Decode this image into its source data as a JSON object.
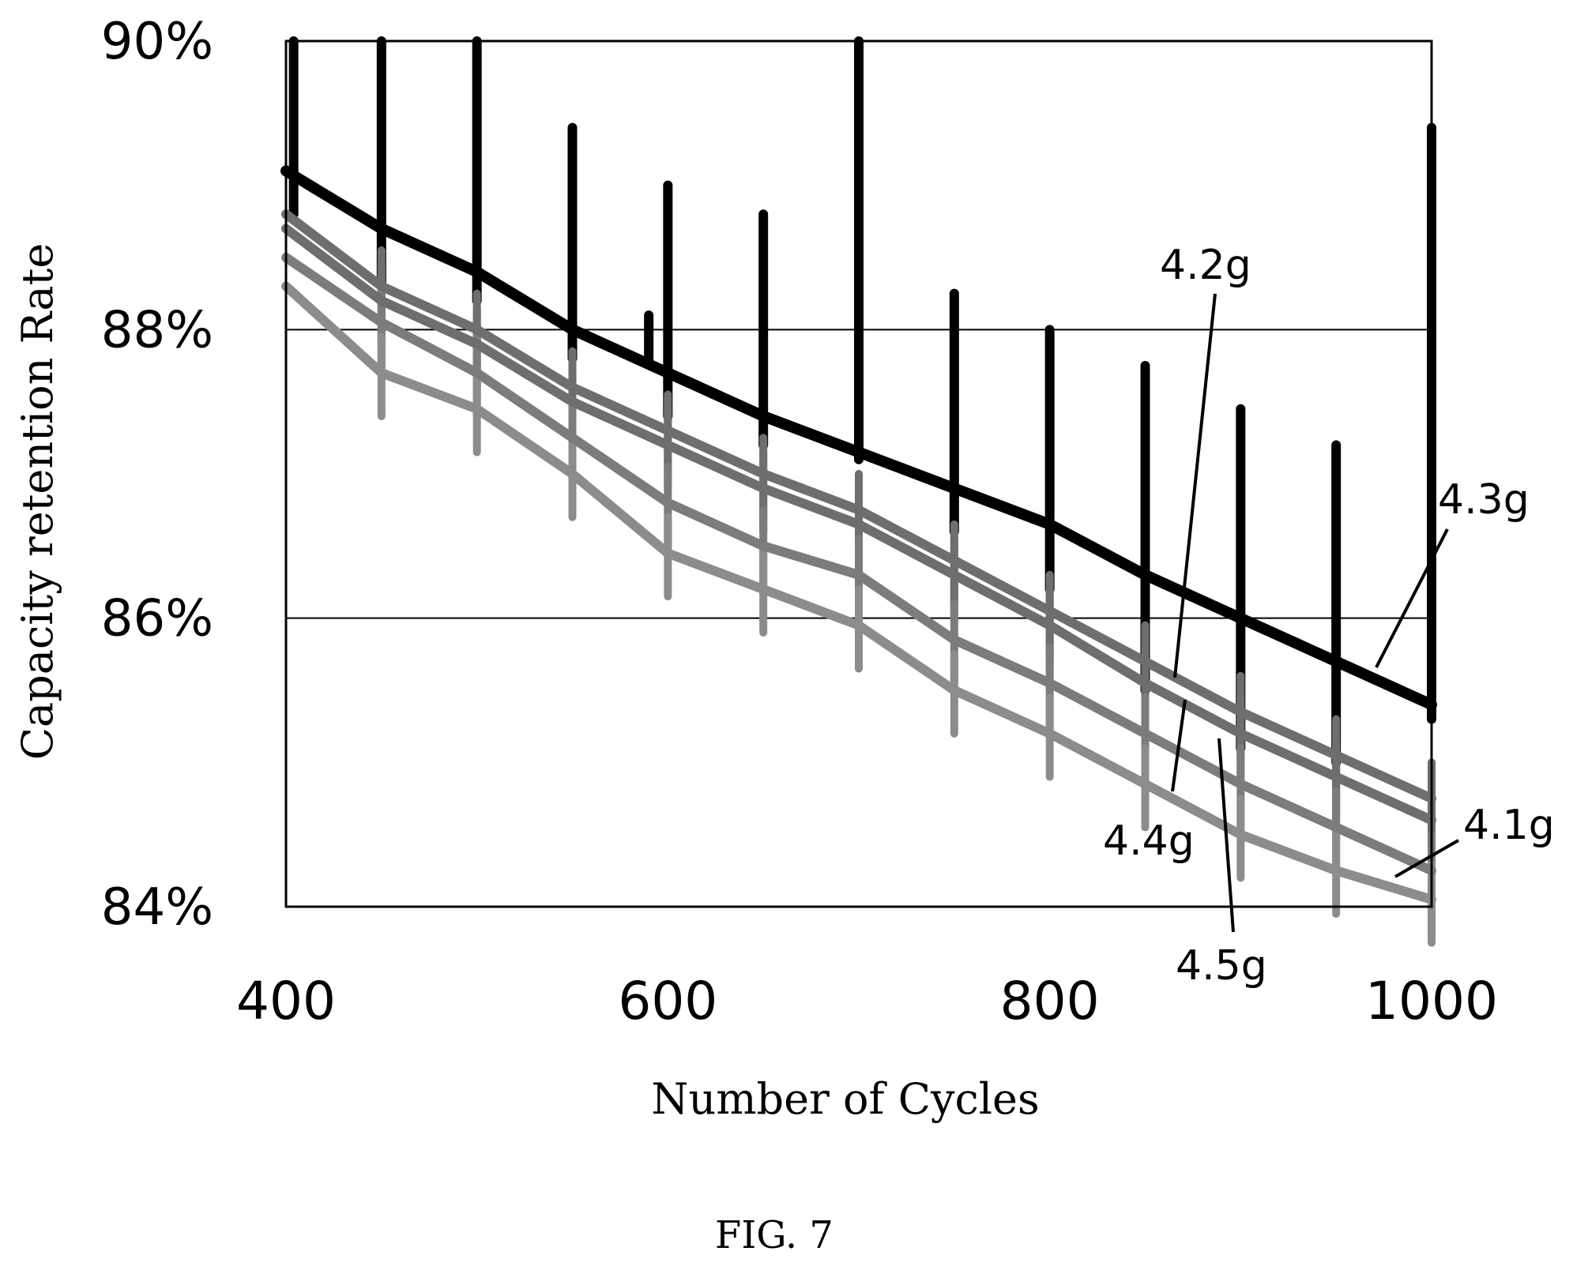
{
  "chart_data": {
    "type": "line",
    "title": "",
    "xlabel": "Number of Cycles",
    "ylabel": "Capacity retention Rate",
    "xlim": [
      400,
      1000
    ],
    "ylim": [
      84,
      90
    ],
    "x_ticks": [
      400,
      600,
      800,
      1000
    ],
    "x_tick_labels": [
      "400",
      "600",
      "800",
      "1000"
    ],
    "y_ticks": [
      84,
      86,
      88,
      90
    ],
    "y_tick_labels": [
      "84%",
      "86%",
      "88%",
      "90%"
    ],
    "grid": "horizontal",
    "legend": "none",
    "series": [
      {
        "name": "4.3g",
        "color": "#000000",
        "x": [
          400,
          450,
          500,
          550,
          600,
          650,
          700,
          750,
          800,
          850,
          900,
          950,
          1000
        ],
        "values": [
          89.1,
          88.7,
          88.4,
          88.0,
          87.7,
          87.4,
          87.15,
          86.9,
          86.65,
          86.3,
          86.0,
          85.7,
          85.4
        ],
        "spike_x": [
          404,
          450,
          500,
          550,
          590,
          600,
          650,
          700,
          750,
          800,
          850,
          900,
          950,
          1000
        ],
        "spike_top": [
          90.0,
          90.0,
          90.0,
          89.4,
          88.1,
          89.0,
          88.8,
          90.0,
          88.25,
          88.0,
          87.75,
          87.45,
          87.2,
          89.4
        ],
        "spike_bottom": [
          88.8,
          88.3,
          88.2,
          87.8,
          87.8,
          87.4,
          87.2,
          87.1,
          86.6,
          86.2,
          85.5,
          85.1,
          85.0,
          85.3
        ]
      },
      {
        "name": "4.2g",
        "color": "#6e6e6e",
        "x": [
          400,
          450,
          500,
          550,
          600,
          650,
          700,
          750,
          800,
          850,
          900,
          950,
          1000
        ],
        "values": [
          88.8,
          88.3,
          88.0,
          87.6,
          87.3,
          87.0,
          86.75,
          86.4,
          86.05,
          85.7,
          85.35,
          85.05,
          84.75
        ]
      },
      {
        "name": "4.4g",
        "color": "#6e6e6e",
        "x": [
          400,
          450,
          500,
          550,
          600,
          650,
          700,
          750,
          800,
          850,
          900,
          950,
          1000
        ],
        "values": [
          88.7,
          88.2,
          87.9,
          87.5,
          87.2,
          86.9,
          86.65,
          86.3,
          85.95,
          85.55,
          85.2,
          84.9,
          84.6
        ]
      },
      {
        "name": "4.5g",
        "color": "#7c7c7c",
        "x": [
          400,
          450,
          500,
          550,
          600,
          650,
          700,
          750,
          800,
          850,
          900,
          950,
          1000
        ],
        "values": [
          88.5,
          88.05,
          87.7,
          87.25,
          86.8,
          86.5,
          86.3,
          85.85,
          85.55,
          85.2,
          84.85,
          84.55,
          84.25
        ]
      },
      {
        "name": "4.1g",
        "color": "#8c8c8c",
        "x": [
          400,
          450,
          500,
          550,
          600,
          650,
          700,
          750,
          800,
          850,
          900,
          950,
          1000
        ],
        "values": [
          88.3,
          87.7,
          87.45,
          87.0,
          86.45,
          86.2,
          85.95,
          85.5,
          85.2,
          84.85,
          84.5,
          84.25,
          84.05
        ]
      }
    ]
  },
  "annotations": [
    {
      "text": "4.2g",
      "series": "4.2g"
    },
    {
      "text": "4.3g",
      "series": "4.3g"
    },
    {
      "text": "4.4g",
      "series": "4.4g"
    },
    {
      "text": "4.1g",
      "series": "4.1g"
    },
    {
      "text": "4.5g",
      "series": "4.5g"
    }
  ],
  "caption": "FIG. 7"
}
